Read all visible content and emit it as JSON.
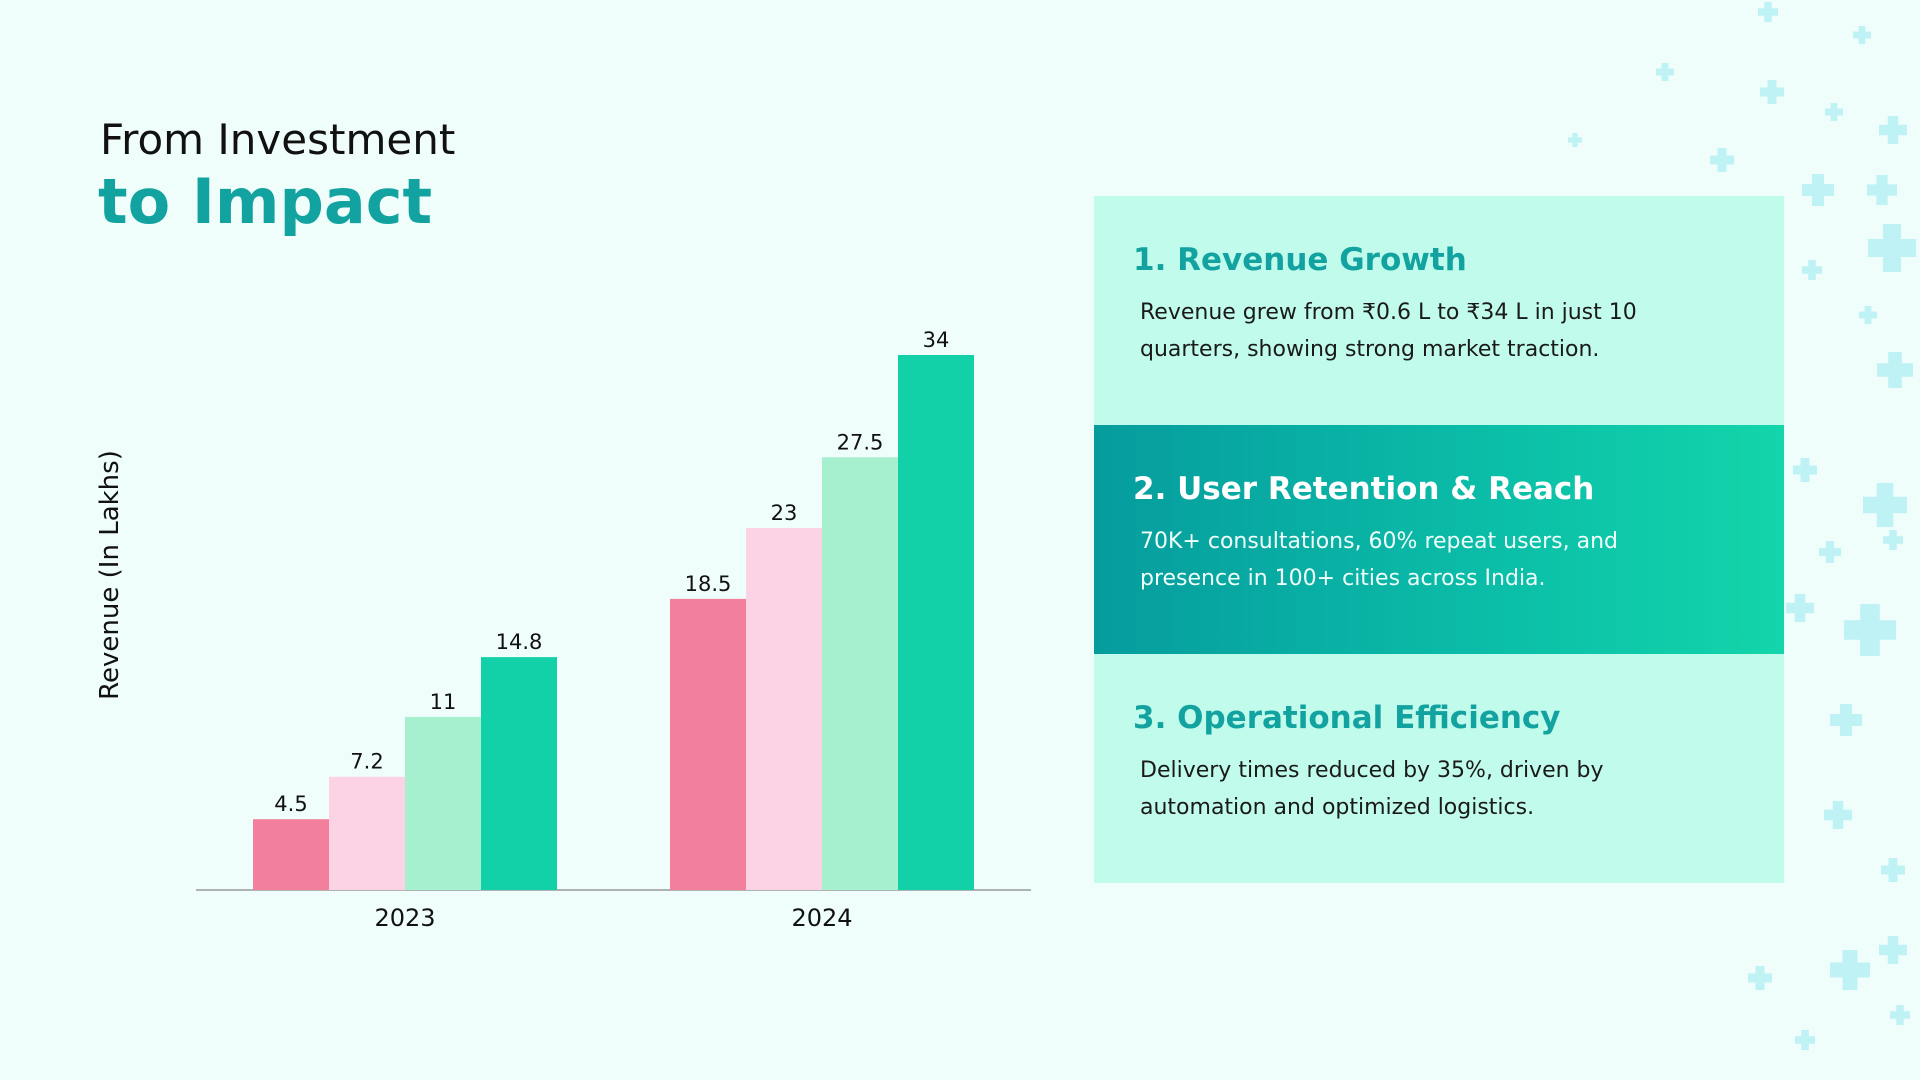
{
  "header": {
    "line1": "From Investment",
    "line2": "to Impact"
  },
  "chart_data": {
    "type": "bar",
    "categories": [
      "2023",
      "2024"
    ],
    "ylabel": "Revenue (In Lakhs)",
    "xlabel": "",
    "ylim": [
      0,
      34
    ],
    "grid": false,
    "series": [
      {
        "values": [
          4.5,
          18.5
        ],
        "color": "#f27f9c"
      },
      {
        "values": [
          7.2,
          23
        ],
        "color": "#fbd3e4"
      },
      {
        "values": [
          11,
          27.5
        ],
        "color": "#a6f0d0"
      },
      {
        "values": [
          14.8,
          34
        ],
        "color": "#12d1a8"
      }
    ],
    "data_labels": [
      [
        "4.5",
        "7.2",
        "11",
        "14.8"
      ],
      [
        "18.5",
        "23",
        "27.5",
        "34"
      ]
    ]
  },
  "panel": {
    "sections": [
      {
        "title": "1. Revenue Growth",
        "body": "Revenue grew from ₹0.6 L to ₹34 L in just 10 quarters, showing strong market traction."
      },
      {
        "title": "2. User Retention & Reach",
        "body": "70K+ consultations, 60% repeat users, and presence in 100+ cities across India."
      },
      {
        "title": "3. Operational Efficiency",
        "body": "Delivery times reduced by 35%, driven by automation and optimized logistics."
      }
    ]
  },
  "colors": {
    "accent": "#12a3a0",
    "panel_bg": "#c0fbec",
    "background": "#effefb"
  }
}
